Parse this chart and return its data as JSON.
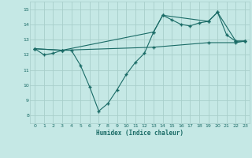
{
  "xlabel": "Humidex (Indice chaleur)",
  "background_color": "#c5e8e5",
  "grid_color": "#a8ceca",
  "line_color": "#1a6b66",
  "xlim": [
    -0.5,
    23.5
  ],
  "ylim": [
    7.5,
    15.5
  ],
  "xticks": [
    0,
    1,
    2,
    3,
    4,
    5,
    6,
    7,
    8,
    9,
    10,
    11,
    12,
    13,
    14,
    15,
    16,
    17,
    18,
    19,
    20,
    21,
    22,
    23
  ],
  "yticks": [
    8,
    9,
    10,
    11,
    12,
    13,
    14,
    15
  ],
  "line1_x": [
    0,
    1,
    2,
    3,
    4,
    5,
    6,
    7,
    8,
    9,
    10,
    11,
    12,
    13,
    14,
    15,
    16,
    17,
    18,
    19,
    20,
    21,
    22,
    23
  ],
  "line1_y": [
    12.4,
    12.0,
    12.1,
    12.3,
    12.3,
    11.3,
    9.9,
    8.3,
    8.8,
    9.7,
    10.7,
    11.5,
    12.1,
    13.5,
    14.6,
    14.3,
    14.0,
    13.9,
    14.1,
    14.2,
    14.8,
    13.3,
    12.9,
    12.9
  ],
  "line2_x": [
    0,
    3,
    13,
    14,
    19,
    20,
    22,
    23
  ],
  "line2_y": [
    12.4,
    12.3,
    13.5,
    14.6,
    14.2,
    14.8,
    12.9,
    12.9
  ],
  "line3_x": [
    0,
    3,
    13,
    19,
    22,
    23
  ],
  "line3_y": [
    12.4,
    12.3,
    12.5,
    12.8,
    12.8,
    12.9
  ]
}
